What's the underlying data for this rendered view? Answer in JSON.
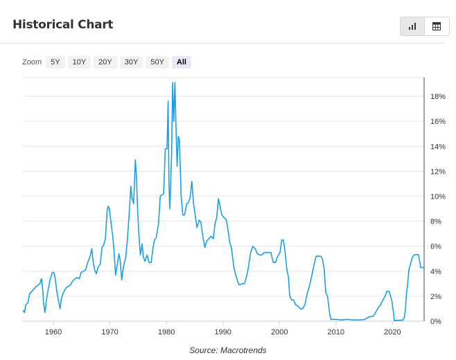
{
  "header": {
    "title": "Historical Chart"
  },
  "view_toggle": [
    {
      "icon": "bar-chart-icon",
      "active": true
    },
    {
      "icon": "table-icon",
      "active": false
    }
  ],
  "zoom": {
    "label": "Zoom",
    "options": [
      "5Y",
      "10Y",
      "20Y",
      "30Y",
      "50Y",
      "All"
    ],
    "active": "All"
  },
  "source_text": "Source: Macrotrends",
  "chart_data": {
    "type": "line",
    "title": "",
    "xlabel": "",
    "ylabel": "",
    "xlim": [
      1954.6,
      2025.6
    ],
    "ylim": [
      0,
      19.5
    ],
    "x_ticks": [
      1960,
      1970,
      1980,
      1990,
      2000,
      2010,
      2020
    ],
    "y_ticks": [
      0,
      2,
      4,
      6,
      8,
      10,
      12,
      14,
      16,
      18
    ],
    "y_tick_labels": [
      "0%",
      "2%",
      "4%",
      "6%",
      "8%",
      "10%",
      "12%",
      "14%",
      "16%",
      "18%"
    ],
    "y_axis_position": "right",
    "grid": "horizontal",
    "line_color": "#1a9ee6",
    "series": [
      {
        "points": [
          [
            1954.6,
            0.9
          ],
          [
            1954.9,
            0.7
          ],
          [
            1955.1,
            1.3
          ],
          [
            1955.5,
            1.5
          ],
          [
            1955.8,
            2.2
          ],
          [
            1956.2,
            2.4
          ],
          [
            1956.6,
            2.6
          ],
          [
            1957.0,
            2.8
          ],
          [
            1957.3,
            2.9
          ],
          [
            1957.6,
            3.0
          ],
          [
            1957.9,
            3.4
          ],
          [
            1958.1,
            2.6
          ],
          [
            1958.3,
            1.3
          ],
          [
            1958.5,
            0.7
          ],
          [
            1958.8,
            1.8
          ],
          [
            1959.1,
            2.6
          ],
          [
            1959.4,
            3.3
          ],
          [
            1959.8,
            3.9
          ],
          [
            1960.1,
            3.9
          ],
          [
            1960.3,
            3.5
          ],
          [
            1960.6,
            2.4
          ],
          [
            1960.8,
            1.9
          ],
          [
            1961.0,
            1.4
          ],
          [
            1961.2,
            1.0
          ],
          [
            1961.4,
            1.8
          ],
          [
            1961.7,
            2.2
          ],
          [
            1962.0,
            2.5
          ],
          [
            1962.3,
            2.7
          ],
          [
            1962.7,
            2.8
          ],
          [
            1963.0,
            2.9
          ],
          [
            1963.4,
            3.2
          ],
          [
            1963.8,
            3.4
          ],
          [
            1964.2,
            3.5
          ],
          [
            1964.6,
            3.4
          ],
          [
            1964.9,
            3.9
          ],
          [
            1965.3,
            4.0
          ],
          [
            1965.7,
            4.1
          ],
          [
            1966.0,
            4.6
          ],
          [
            1966.5,
            5.2
          ],
          [
            1966.8,
            5.8
          ],
          [
            1967.0,
            4.9
          ],
          [
            1967.3,
            4.1
          ],
          [
            1967.6,
            3.8
          ],
          [
            1967.9,
            4.3
          ],
          [
            1968.3,
            4.6
          ],
          [
            1968.6,
            5.9
          ],
          [
            1968.9,
            6.1
          ],
          [
            1969.2,
            6.6
          ],
          [
            1969.5,
            8.8
          ],
          [
            1969.7,
            9.2
          ],
          [
            1969.9,
            9.0
          ],
          [
            1970.2,
            7.9
          ],
          [
            1970.5,
            6.8
          ],
          [
            1970.8,
            5.2
          ],
          [
            1971.0,
            3.7
          ],
          [
            1971.3,
            4.5
          ],
          [
            1971.6,
            5.4
          ],
          [
            1971.8,
            4.9
          ],
          [
            1972.1,
            3.3
          ],
          [
            1972.4,
            4.4
          ],
          [
            1972.8,
            5.1
          ],
          [
            1973.1,
            6.6
          ],
          [
            1973.4,
            8.5
          ],
          [
            1973.7,
            10.8
          ],
          [
            1973.9,
            9.9
          ],
          [
            1974.2,
            9.4
          ],
          [
            1974.5,
            12.9
          ],
          [
            1974.7,
            11.6
          ],
          [
            1974.9,
            9.0
          ],
          [
            1975.1,
            7.1
          ],
          [
            1975.4,
            5.3
          ],
          [
            1975.7,
            6.2
          ],
          [
            1975.9,
            5.2
          ],
          [
            1976.2,
            4.8
          ],
          [
            1976.6,
            5.3
          ],
          [
            1976.9,
            4.7
          ],
          [
            1977.3,
            4.7
          ],
          [
            1977.6,
            5.8
          ],
          [
            1977.9,
            6.5
          ],
          [
            1978.2,
            6.7
          ],
          [
            1978.6,
            7.8
          ],
          [
            1978.9,
            10.0
          ],
          [
            1979.2,
            10.1
          ],
          [
            1979.5,
            10.2
          ],
          [
            1979.8,
            13.8
          ],
          [
            1980.1,
            13.8
          ],
          [
            1980.3,
            17.6
          ],
          [
            1980.45,
            11.0
          ],
          [
            1980.6,
            9.0
          ],
          [
            1980.9,
            13.0
          ],
          [
            1981.1,
            19.1
          ],
          [
            1981.3,
            16.0
          ],
          [
            1981.5,
            19.1
          ],
          [
            1981.7,
            15.5
          ],
          [
            1981.9,
            12.4
          ],
          [
            1982.1,
            14.8
          ],
          [
            1982.3,
            14.5
          ],
          [
            1982.6,
            10.1
          ],
          [
            1982.9,
            8.5
          ],
          [
            1983.2,
            8.5
          ],
          [
            1983.6,
            9.4
          ],
          [
            1983.9,
            9.5
          ],
          [
            1984.2,
            9.9
          ],
          [
            1984.5,
            11.2
          ],
          [
            1984.8,
            9.4
          ],
          [
            1985.1,
            8.5
          ],
          [
            1985.4,
            7.5
          ],
          [
            1985.8,
            8.1
          ],
          [
            1986.1,
            7.9
          ],
          [
            1986.4,
            6.9
          ],
          [
            1986.8,
            5.9
          ],
          [
            1987.1,
            6.4
          ],
          [
            1987.5,
            6.6
          ],
          [
            1987.9,
            6.8
          ],
          [
            1988.3,
            6.6
          ],
          [
            1988.6,
            7.8
          ],
          [
            1988.9,
            8.3
          ],
          [
            1989.2,
            9.8
          ],
          [
            1989.5,
            9.2
          ],
          [
            1989.8,
            8.5
          ],
          [
            1990.2,
            8.3
          ],
          [
            1990.6,
            8.1
          ],
          [
            1990.9,
            7.3
          ],
          [
            1991.2,
            6.3
          ],
          [
            1991.5,
            5.9
          ],
          [
            1991.9,
            4.4
          ],
          [
            1992.2,
            3.8
          ],
          [
            1992.6,
            3.2
          ],
          [
            1992.9,
            2.9
          ],
          [
            1993.4,
            3.0
          ],
          [
            1993.8,
            3.0
          ],
          [
            1994.2,
            3.6
          ],
          [
            1994.5,
            4.3
          ],
          [
            1994.9,
            5.5
          ],
          [
            1995.3,
            6.0
          ],
          [
            1995.7,
            5.8
          ],
          [
            1996.1,
            5.4
          ],
          [
            1996.5,
            5.3
          ],
          [
            1996.9,
            5.3
          ],
          [
            1997.3,
            5.5
          ],
          [
            1997.7,
            5.5
          ],
          [
            1998.1,
            5.5
          ],
          [
            1998.5,
            5.5
          ],
          [
            1998.9,
            4.7
          ],
          [
            1999.3,
            4.7
          ],
          [
            1999.7,
            5.2
          ],
          [
            2000.1,
            5.5
          ],
          [
            2000.4,
            6.5
          ],
          [
            2000.7,
            6.5
          ],
          [
            2001.0,
            5.5
          ],
          [
            2001.3,
            4.2
          ],
          [
            2001.6,
            3.5
          ],
          [
            2001.8,
            2.1
          ],
          [
            2002.1,
            1.7
          ],
          [
            2002.5,
            1.7
          ],
          [
            2002.9,
            1.3
          ],
          [
            2003.3,
            1.2
          ],
          [
            2003.7,
            1.0
          ],
          [
            2004.1,
            1.0
          ],
          [
            2004.5,
            1.3
          ],
          [
            2004.9,
            2.2
          ],
          [
            2005.3,
            2.8
          ],
          [
            2005.7,
            3.6
          ],
          [
            2006.1,
            4.5
          ],
          [
            2006.5,
            5.2
          ],
          [
            2006.9,
            5.2
          ],
          [
            2007.3,
            5.2
          ],
          [
            2007.6,
            5.0
          ],
          [
            2007.9,
            4.2
          ],
          [
            2008.2,
            2.3
          ],
          [
            2008.5,
            2.0
          ],
          [
            2008.9,
            0.6
          ],
          [
            2009.1,
            0.15
          ],
          [
            2010.0,
            0.15
          ],
          [
            2011.0,
            0.1
          ],
          [
            2012.0,
            0.15
          ],
          [
            2013.0,
            0.1
          ],
          [
            2014.0,
            0.1
          ],
          [
            2015.0,
            0.13
          ],
          [
            2015.9,
            0.36
          ],
          [
            2016.6,
            0.4
          ],
          [
            2017.0,
            0.7
          ],
          [
            2017.5,
            1.1
          ],
          [
            2017.9,
            1.3
          ],
          [
            2018.3,
            1.7
          ],
          [
            2018.7,
            2.0
          ],
          [
            2019.0,
            2.4
          ],
          [
            2019.4,
            2.4
          ],
          [
            2019.6,
            2.1
          ],
          [
            2019.9,
            1.6
          ],
          [
            2020.2,
            0.6
          ],
          [
            2020.3,
            0.05
          ],
          [
            2021.0,
            0.08
          ],
          [
            2021.8,
            0.08
          ],
          [
            2022.1,
            0.3
          ],
          [
            2022.3,
            1.0
          ],
          [
            2022.5,
            2.3
          ],
          [
            2022.7,
            3.1
          ],
          [
            2022.9,
            4.1
          ],
          [
            2023.2,
            4.6
          ],
          [
            2023.5,
            5.1
          ],
          [
            2023.8,
            5.3
          ],
          [
            2024.2,
            5.33
          ],
          [
            2024.6,
            5.33
          ],
          [
            2024.8,
            4.8
          ],
          [
            2025.0,
            4.3
          ],
          [
            2025.6,
            4.3
          ]
        ]
      }
    ]
  }
}
